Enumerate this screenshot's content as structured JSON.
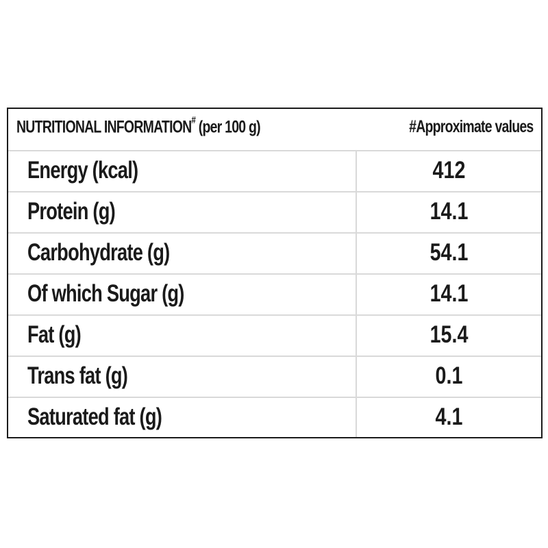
{
  "table": {
    "header": {
      "title": "NUTRITIONAL INFORMATION",
      "title_mark": "#",
      "basis": "(per 100 g)",
      "note": "#Approximate values"
    },
    "rows": [
      {
        "label": "Energy (kcal)",
        "value": "412"
      },
      {
        "label": "Protein (g)",
        "value": "14.1"
      },
      {
        "label": "Carbohydrate (g)",
        "value": "54.1"
      },
      {
        "label": "Of which Sugar (g)",
        "value": "14.1"
      },
      {
        "label": "Fat (g)",
        "value": "15.4"
      },
      {
        "label": "Trans fat (g)",
        "value": "0.1"
      },
      {
        "label": "Saturated fat (g)",
        "value": "4.1"
      }
    ]
  },
  "colors": {
    "text": "#1a1a1a",
    "border": "#1a1a1a",
    "grid": "#d9d9d9",
    "background": "#ffffff"
  }
}
